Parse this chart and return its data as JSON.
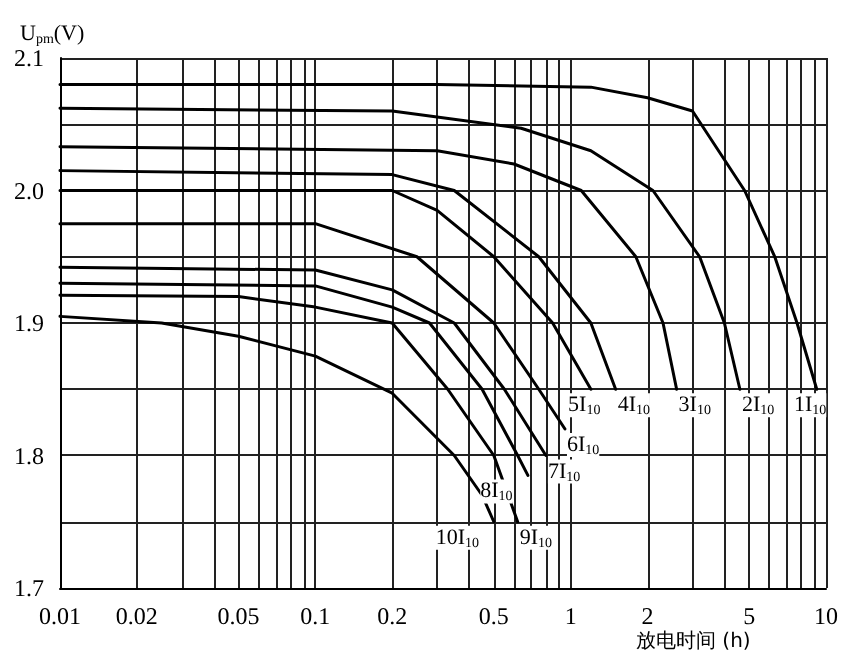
{
  "chart_data": {
    "type": "line",
    "ylabel": "U$_{pm}$(V)",
    "xlabel": "放电时间 (h)",
    "log": "x",
    "grid": true,
    "marker": "none",
    "line_style": "solid",
    "legend": false,
    "xlim": [
      0.01,
      10
    ],
    "ylim": [
      1.7,
      2.1
    ],
    "xticks": [
      0.01,
      0.02,
      {
        "value": 0.03,
        "label": null
      },
      {
        "value": 0.04,
        "label": null
      },
      0.05,
      {
        "value": 0.06,
        "label": null
      },
      {
        "value": 0.07,
        "label": null
      },
      {
        "value": 0.08,
        "label": null
      },
      {
        "value": 0.09,
        "label": null
      },
      0.1,
      0.2,
      {
        "value": 0.3,
        "label": null
      },
      {
        "value": 0.4,
        "label": null
      },
      0.5,
      {
        "value": 0.6,
        "label": null
      },
      {
        "value": 0.7,
        "label": null
      },
      {
        "value": 0.8,
        "label": null
      },
      {
        "value": 0.9,
        "label": null
      },
      1,
      2,
      {
        "value": 3,
        "label": null
      },
      {
        "value": 4,
        "label": null
      },
      5,
      {
        "value": 6,
        "label": null
      },
      {
        "value": 7,
        "label": null
      },
      {
        "value": 8,
        "label": null
      },
      {
        "value": 9,
        "label": null
      },
      10
    ],
    "yticks": [
      1.7,
      {
        "value": 1.75,
        "label": null
      },
      1.8,
      {
        "value": 1.85,
        "label": null
      },
      1.9,
      {
        "value": 1.95,
        "label": null
      },
      {
        "value": 2,
        "label": "2.0"
      },
      {
        "value": 2.05,
        "label": null
      },
      2.1
    ],
    "series": [
      {
        "name": "1I$_{10}$",
        "color": "#000000",
        "x": [
          0.01,
          0.3,
          1.2,
          2,
          3,
          4.8,
          6.3,
          7.7,
          9.2
        ],
        "values": [
          2.08,
          2.08,
          2.078,
          2.07,
          2.06,
          2.0,
          1.95,
          1.9,
          1.85
        ]
      },
      {
        "name": "2I$_{10}$",
        "color": "#000000",
        "x": [
          0.01,
          0.2,
          0.64,
          1.2,
          2.1,
          3.2,
          4,
          4.6
        ],
        "values": [
          2.062,
          2.06,
          2.047,
          2.03,
          2.0,
          1.95,
          1.9,
          1.85
        ]
      },
      {
        "name": "3I$_{10}$",
        "color": "#000000",
        "x": [
          0.01,
          0.3,
          0.6,
          1.1,
          1.8,
          2.3,
          2.6
        ],
        "values": [
          2.033,
          2.03,
          2.02,
          2.0,
          1.95,
          1.9,
          1.85
        ]
      },
      {
        "name": "4I$_{10}$",
        "color": "#000000",
        "x": [
          0.01,
          0.2,
          0.35,
          0.75,
          1.2,
          1.5
        ],
        "values": [
          2.015,
          2.012,
          2.0,
          1.95,
          1.9,
          1.85
        ]
      },
      {
        "name": "5I$_{10}$",
        "color": "#000000",
        "x": [
          0.01,
          0.2,
          0.3,
          0.5,
          0.85,
          1.2
        ],
        "values": [
          2.0,
          2.0,
          1.985,
          1.95,
          1.9,
          1.85
        ]
      },
      {
        "name": "6I$_{10}$",
        "color": "#000000",
        "x": [
          0.01,
          0.1,
          0.25,
          0.5,
          0.75,
          0.95
        ],
        "values": [
          1.975,
          1.975,
          1.95,
          1.9,
          1.85,
          1.82
        ]
      },
      {
        "name": "7I$_{10}$",
        "color": "#000000",
        "x": [
          0.01,
          0.1,
          0.2,
          0.35,
          0.55,
          0.8
        ],
        "values": [
          1.942,
          1.94,
          1.925,
          1.9,
          1.85,
          1.8
        ]
      },
      {
        "name": "8I$_{10}$",
        "color": "#000000",
        "x": [
          0.01,
          0.1,
          0.2,
          0.28,
          0.45,
          0.62,
          0.68
        ],
        "values": [
          1.93,
          1.928,
          1.912,
          1.9,
          1.85,
          1.8,
          1.785
        ]
      },
      {
        "name": "9I$_{10}$",
        "color": "#000000",
        "x": [
          0.01,
          0.05,
          0.1,
          0.2,
          0.33,
          0.5,
          0.62
        ],
        "values": [
          1.921,
          1.92,
          1.912,
          1.9,
          1.85,
          1.8,
          1.75
        ]
      },
      {
        "name": "10I$_{10}$",
        "color": "#000000",
        "x": [
          0.01,
          0.025,
          0.05,
          0.1,
          0.2,
          0.35,
          0.45,
          0.5
        ],
        "values": [
          1.905,
          1.9,
          1.89,
          1.875,
          1.847,
          1.8,
          1.77,
          1.75
        ]
      }
    ]
  }
}
